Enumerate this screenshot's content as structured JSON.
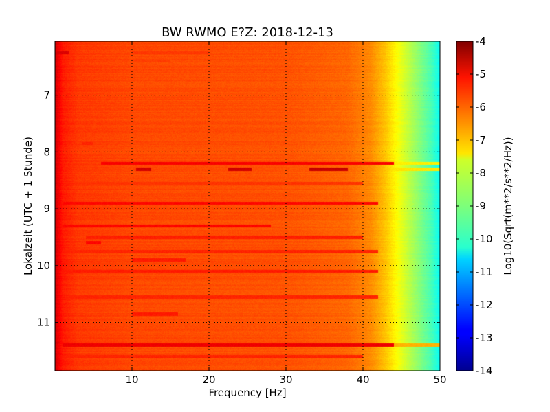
{
  "chart_data": {
    "type": "heatmap",
    "title": "BW RWMO E?Z: 2018-12-13",
    "xlabel": "Frequency [Hz]",
    "ylabel": "Lokalzeit (UTC + 1 Stunde)",
    "xlim": [
      0,
      50
    ],
    "ylim": [
      6.05,
      11.85
    ],
    "x_ticks": [
      "10",
      "20",
      "30",
      "40",
      "50"
    ],
    "y_ticks": [
      "7",
      "8",
      "9",
      "10",
      "11"
    ],
    "grid": true,
    "colormap": "jet",
    "colorbar": {
      "label": "Log10(Sqrt(m**2/s**2/Hz))",
      "range": [
        -14,
        -4
      ],
      "ticks": [
        "-4",
        "-5",
        "-6",
        "-7",
        "-8",
        "-9",
        "-10",
        "-11",
        "-12",
        "-13",
        "-14"
      ]
    },
    "spectrum_profile": {
      "frequency_hz": [
        0,
        1,
        3,
        10,
        20,
        30,
        38,
        41,
        43,
        45,
        47,
        49,
        50
      ],
      "log10_amplitude": [
        -4.8,
        -5.5,
        -5.8,
        -5.95,
        -6.0,
        -6.05,
        -6.25,
        -6.6,
        -7.2,
        -8.0,
        -8.8,
        -9.6,
        -10.2
      ]
    },
    "bands": [
      {
        "time": 6.25,
        "f_from": 0.2,
        "f_to": 1.8,
        "level": -4.9
      },
      {
        "time": 6.25,
        "f_from": 10,
        "f_to": 20,
        "level": -5.8
      },
      {
        "time": 6.4,
        "f_from": 10,
        "f_to": 15,
        "level": -5.85
      },
      {
        "time": 7.85,
        "f_from": 3.5,
        "f_to": 5,
        "level": -5.6
      },
      {
        "time": 8.2,
        "f_from": 6,
        "f_to": 44,
        "level": -5.2
      },
      {
        "time": 8.2,
        "f_from": 44,
        "f_to": 50,
        "level": -7.6
      },
      {
        "time": 8.3,
        "f_from": 10.5,
        "f_to": 12.5,
        "level": -4.8
      },
      {
        "time": 8.3,
        "f_from": 22.5,
        "f_to": 25.5,
        "level": -4.8
      },
      {
        "time": 8.3,
        "f_from": 33,
        "f_to": 38,
        "level": -4.7
      },
      {
        "time": 8.3,
        "f_from": 43,
        "f_to": 50,
        "level": -7.5
      },
      {
        "time": 8.55,
        "f_from": 0.5,
        "f_to": 40,
        "level": -5.75
      },
      {
        "time": 8.9,
        "f_from": 1,
        "f_to": 42,
        "level": -5.3
      },
      {
        "time": 9.3,
        "f_from": 1,
        "f_to": 28,
        "level": -5.3
      },
      {
        "time": 9.5,
        "f_from": 4,
        "f_to": 40,
        "level": -5.55
      },
      {
        "time": 9.6,
        "f_from": 4,
        "f_to": 6,
        "level": -5.3
      },
      {
        "time": 9.75,
        "f_from": 1,
        "f_to": 42,
        "level": -5.6
      },
      {
        "time": 9.9,
        "f_from": 10,
        "f_to": 17,
        "level": -5.5
      },
      {
        "time": 10.1,
        "f_from": 1,
        "f_to": 42,
        "level": -5.5
      },
      {
        "time": 10.55,
        "f_from": 1,
        "f_to": 42,
        "level": -5.6
      },
      {
        "time": 10.85,
        "f_from": 10,
        "f_to": 16,
        "level": -5.5
      },
      {
        "time": 11.4,
        "f_from": 1,
        "f_to": 44,
        "level": -5.1
      },
      {
        "time": 11.4,
        "f_from": 44,
        "f_to": 50,
        "level": -7.0
      },
      {
        "time": 11.6,
        "f_from": 1,
        "f_to": 40,
        "level": -5.6
      }
    ]
  }
}
